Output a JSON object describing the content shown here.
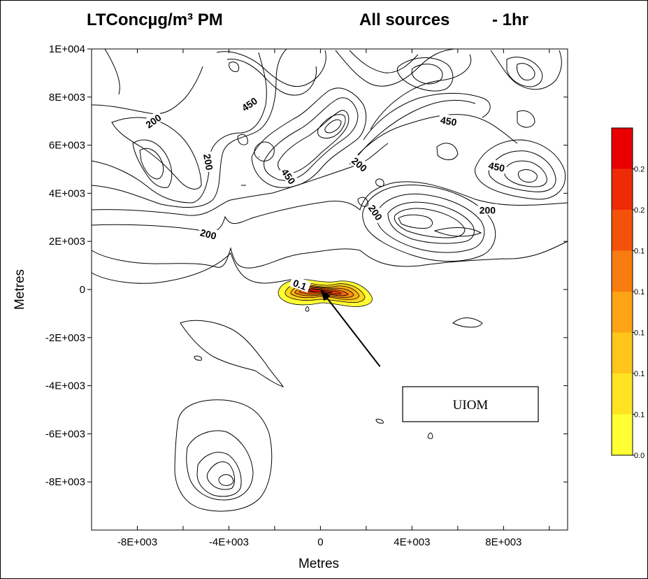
{
  "title": {
    "pollutant": "LTConcµg/m³  PM",
    "sources": "All sources",
    "averaging": "- 1hr"
  },
  "chart_data": {
    "type": "contour",
    "xlabel": "Metres",
    "ylabel": "Metres",
    "xlim": [
      -10000,
      10800
    ],
    "ylim": [
      -10000,
      10000
    ],
    "x_ticks": [
      {
        "value": -8000,
        "label": "-8E+003"
      },
      {
        "value": -4000,
        "label": "-4E+003"
      },
      {
        "value": 0,
        "label": "0"
      },
      {
        "value": 4000,
        "label": "4E+003"
      },
      {
        "value": 8000,
        "label": "8E+003"
      }
    ],
    "y_ticks": [
      {
        "value": 10000,
        "label": "1E+004"
      },
      {
        "value": 8000,
        "label": "8E+003"
      },
      {
        "value": 6000,
        "label": "6E+003"
      },
      {
        "value": 4000,
        "label": "4E+003"
      },
      {
        "value": 2000,
        "label": "2E+003"
      },
      {
        "value": 0,
        "label": "0"
      },
      {
        "value": -2000,
        "label": "-2E+003"
      },
      {
        "value": -4000,
        "label": "-4E+003"
      },
      {
        "value": -6000,
        "label": "-6E+003"
      },
      {
        "value": -8000,
        "label": "-8E+003"
      }
    ],
    "contour_labels": [
      {
        "text": "200",
        "x": -7300,
        "y": 7000,
        "angle": 35
      },
      {
        "text": "450",
        "x": -3100,
        "y": 7700,
        "angle": 35
      },
      {
        "text": "200",
        "x": -4900,
        "y": 5300,
        "angle": -80
      },
      {
        "text": "450",
        "x": -1400,
        "y": 4700,
        "angle": -55
      },
      {
        "text": "200",
        "x": 1700,
        "y": 5200,
        "angle": -40
      },
      {
        "text": "200",
        "x": 2400,
        "y": 3200,
        "angle": -55
      },
      {
        "text": "450",
        "x": 5600,
        "y": 7000,
        "angle": -10
      },
      {
        "text": "450",
        "x": 7700,
        "y": 5100,
        "angle": -12
      },
      {
        "text": "200",
        "x": 7300,
        "y": 3300,
        "angle": 0
      },
      {
        "text": "200",
        "x": -4900,
        "y": 2300,
        "angle": -15
      },
      {
        "text": "0.1",
        "x": -900,
        "y": 200,
        "angle": -20
      }
    ],
    "colorbar": {
      "colors": [
        "#ffff33",
        "#ffe322",
        "#ffc51a",
        "#fda314",
        "#f87c10",
        "#f4520a",
        "#ee2b05",
        "#ea0000"
      ],
      "labels": [
        "0.0",
        "0.1",
        "0.1",
        "0.1",
        "0.1",
        "0.1",
        "0.2",
        "0.2"
      ]
    },
    "annotation": {
      "text": "UIOM",
      "target": {
        "x": 0,
        "y": 0
      },
      "arrow_from": {
        "x": 2600,
        "y": -3200
      }
    }
  }
}
